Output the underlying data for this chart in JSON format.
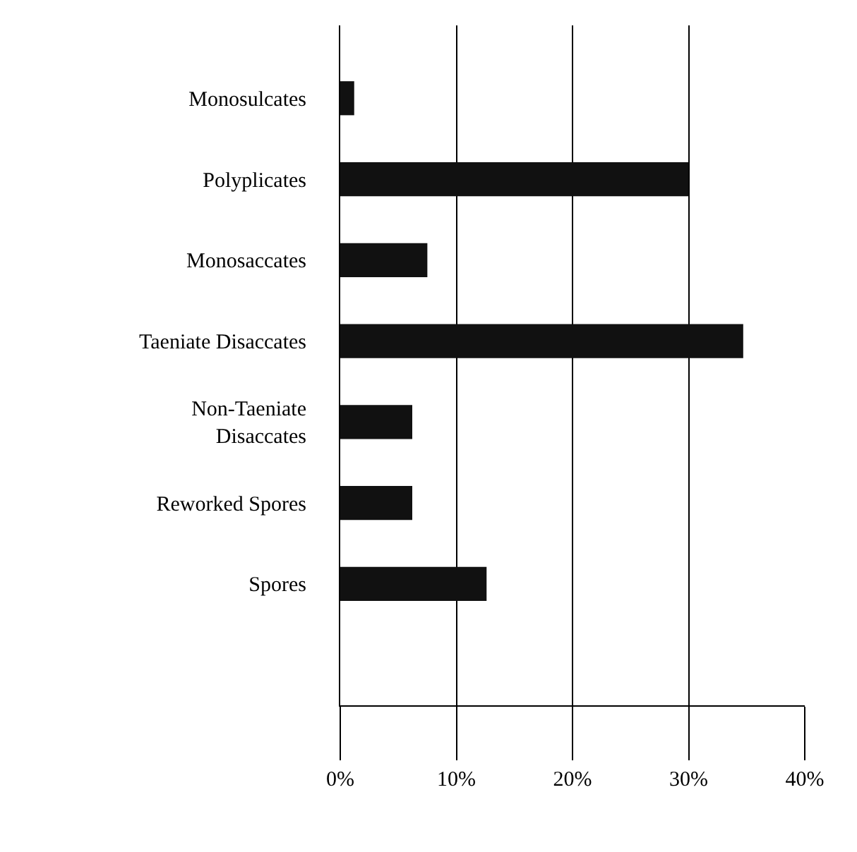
{
  "chart_data": {
    "type": "bar",
    "orientation": "horizontal",
    "categories": [
      "Monosulcates",
      "Polyplicates",
      "Monosaccates",
      "Taeniate Disaccates",
      "Non-Taeniate Disaccates",
      "Reworked Spores",
      "Spores"
    ],
    "values": [
      1.2,
      30,
      7.5,
      34.7,
      6.2,
      6.2,
      12.6
    ],
    "color": "#111111",
    "xlim": [
      0,
      40
    ],
    "xticks": [
      {
        "value": 0,
        "label": "0%"
      },
      {
        "value": 10,
        "label": "10%"
      },
      {
        "value": 20,
        "label": "20%"
      },
      {
        "value": 30,
        "label": "30%"
      },
      {
        "value": 40,
        "label": "40%"
      }
    ],
    "grid": "x"
  }
}
